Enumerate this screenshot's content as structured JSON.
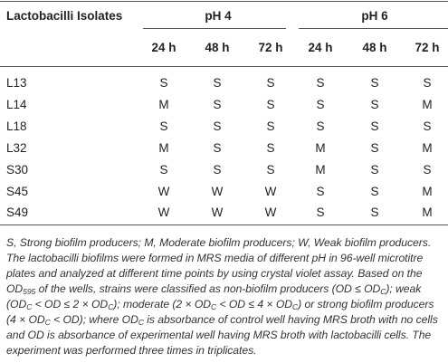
{
  "table": {
    "header": {
      "isolates_label": "Lactobacilli Isolates",
      "groups": [
        "pH 4",
        "pH 6"
      ],
      "times": [
        "24 h",
        "48 h",
        "72 h",
        "24 h",
        "48 h",
        "72 h"
      ]
    },
    "rows": [
      {
        "isolate": "L13",
        "values": [
          "S",
          "S",
          "S",
          "S",
          "S",
          "S"
        ]
      },
      {
        "isolate": "L14",
        "values": [
          "M",
          "S",
          "S",
          "S",
          "S",
          "M"
        ]
      },
      {
        "isolate": "L18",
        "values": [
          "S",
          "S",
          "S",
          "S",
          "S",
          "S"
        ]
      },
      {
        "isolate": "L32",
        "values": [
          "M",
          "S",
          "S",
          "M",
          "S",
          "M"
        ]
      },
      {
        "isolate": "S30",
        "values": [
          "S",
          "S",
          "S",
          "M",
          "S",
          "S"
        ]
      },
      {
        "isolate": "S45",
        "values": [
          "W",
          "W",
          "W",
          "S",
          "S",
          "M"
        ]
      },
      {
        "isolate": "S49",
        "values": [
          "W",
          "W",
          "W",
          "S",
          "S",
          "M"
        ]
      }
    ]
  },
  "footnote": {
    "legend": "S, Strong biofilm producers; M, Moderate biofilm producers; W, Weak biofilm producers.",
    "description": {
      "p1": "The lactobacilli biofilms were formed in MRS media of different pH in 96-well microtitre plates and analyzed at different time points by using crystal violet assay. Based on the ",
      "od": "OD",
      "od_sub": "595",
      "p2": " of the wells, strains were classified as non-biofilm producers (OD ≤ OD",
      "c": "C",
      "p3": "); weak (OD",
      "p4": " < OD ≤ 2 × OD",
      "p5": "); moderate (2 × OD",
      "p6": " < OD ≤ 4 × OD",
      "p7": ") or strong biofilm producers (4 × OD",
      "p8": " < OD); where OD",
      "p9": " is absorbance of control well having MRS broth with no cells and OD is absorbance of experimental well having MRS broth with lactobacilli cells. The experiment was performed three times in triplicates."
    }
  }
}
